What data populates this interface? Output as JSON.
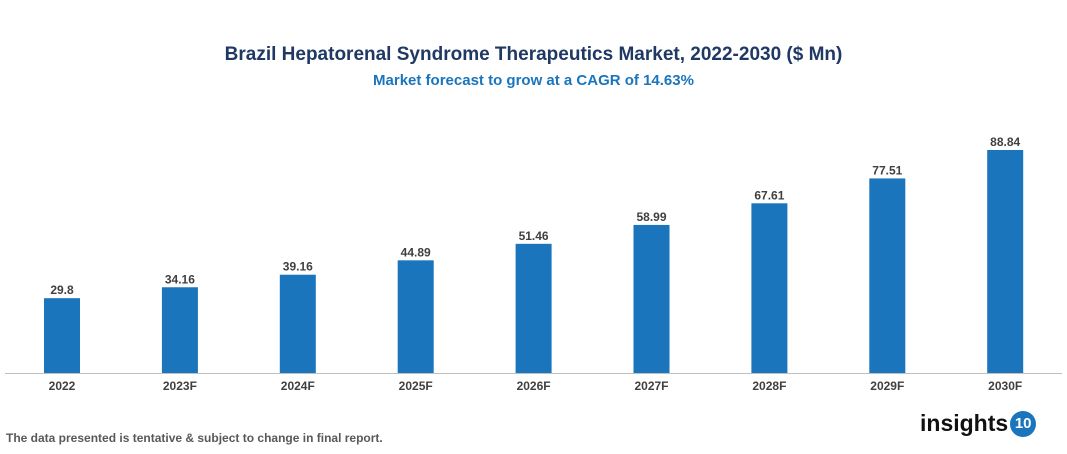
{
  "chart_data": {
    "type": "bar",
    "title": "Brazil Hepatorenal Syndrome Therapeutics Market, 2022-2030 ($ Mn)",
    "subtitle": "Market forecast to grow at a CAGR of 14.63%",
    "categories": [
      "2022",
      "2023F",
      "2024F",
      "2025F",
      "2026F",
      "2027F",
      "2028F",
      "2029F",
      "2030F"
    ],
    "values": [
      29.8,
      34.16,
      39.16,
      44.89,
      51.46,
      58.99,
      67.61,
      77.51,
      88.84
    ],
    "value_labels": [
      "29.8",
      "34.16",
      "39.16",
      "44.89",
      "51.46",
      "58.99",
      "67.61",
      "77.51",
      "88.84"
    ],
    "xlabel": "",
    "ylabel": "",
    "ylim": [
      0,
      88.84
    ],
    "grid": false,
    "bar_color": "#1a75bc"
  },
  "footnote": "The data presented is tentative & subject to change in final report.",
  "logo": {
    "text": "insights",
    "badge": "10"
  }
}
